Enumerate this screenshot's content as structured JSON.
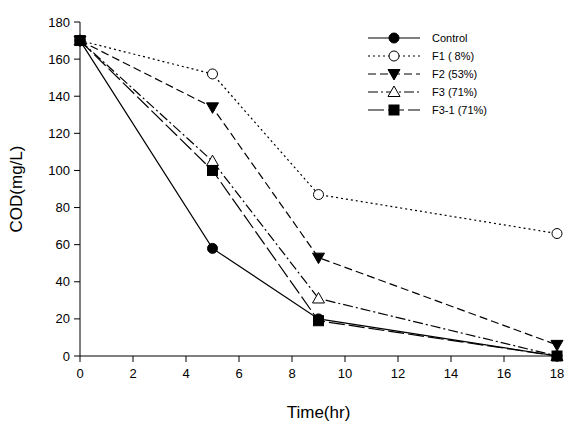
{
  "chart_data": {
    "type": "line",
    "x_label": "Time(hr)",
    "y_label": "COD(mg/L)",
    "x": [
      0,
      5,
      9,
      18
    ],
    "series": [
      {
        "name": "Control",
        "color": "#000000",
        "marker": "circle",
        "line_style": "solid",
        "values": [
          170,
          58,
          20,
          0
        ]
      },
      {
        "name": "F1 ( 8%)",
        "color": "#000000",
        "marker": "circle-open",
        "line_style": "dotted",
        "values": [
          170,
          152,
          87,
          66
        ]
      },
      {
        "name": "F2 (53%)",
        "color": "#000000",
        "marker": "triangle-down",
        "line_style": "dashed",
        "values": [
          170,
          134,
          53,
          6
        ]
      },
      {
        "name": "F3 (71%)",
        "color": "#000000",
        "marker": "triangle-open",
        "line_style": "dashdot",
        "values": [
          170,
          105,
          31,
          0
        ]
      },
      {
        "name": "F3-1 (71%)",
        "color": "#000000",
        "marker": "square",
        "line_style": "longdash",
        "values": [
          170,
          100,
          19,
          0
        ]
      }
    ],
    "xlim": [
      0,
      18
    ],
    "xticks": [
      0,
      2,
      4,
      6,
      8,
      10,
      12,
      14,
      16,
      18
    ],
    "ylim": [
      0,
      180
    ],
    "yticks": [
      0,
      20,
      40,
      60,
      80,
      100,
      120,
      140,
      160,
      180
    ],
    "grid": false,
    "legend": "top-right"
  }
}
